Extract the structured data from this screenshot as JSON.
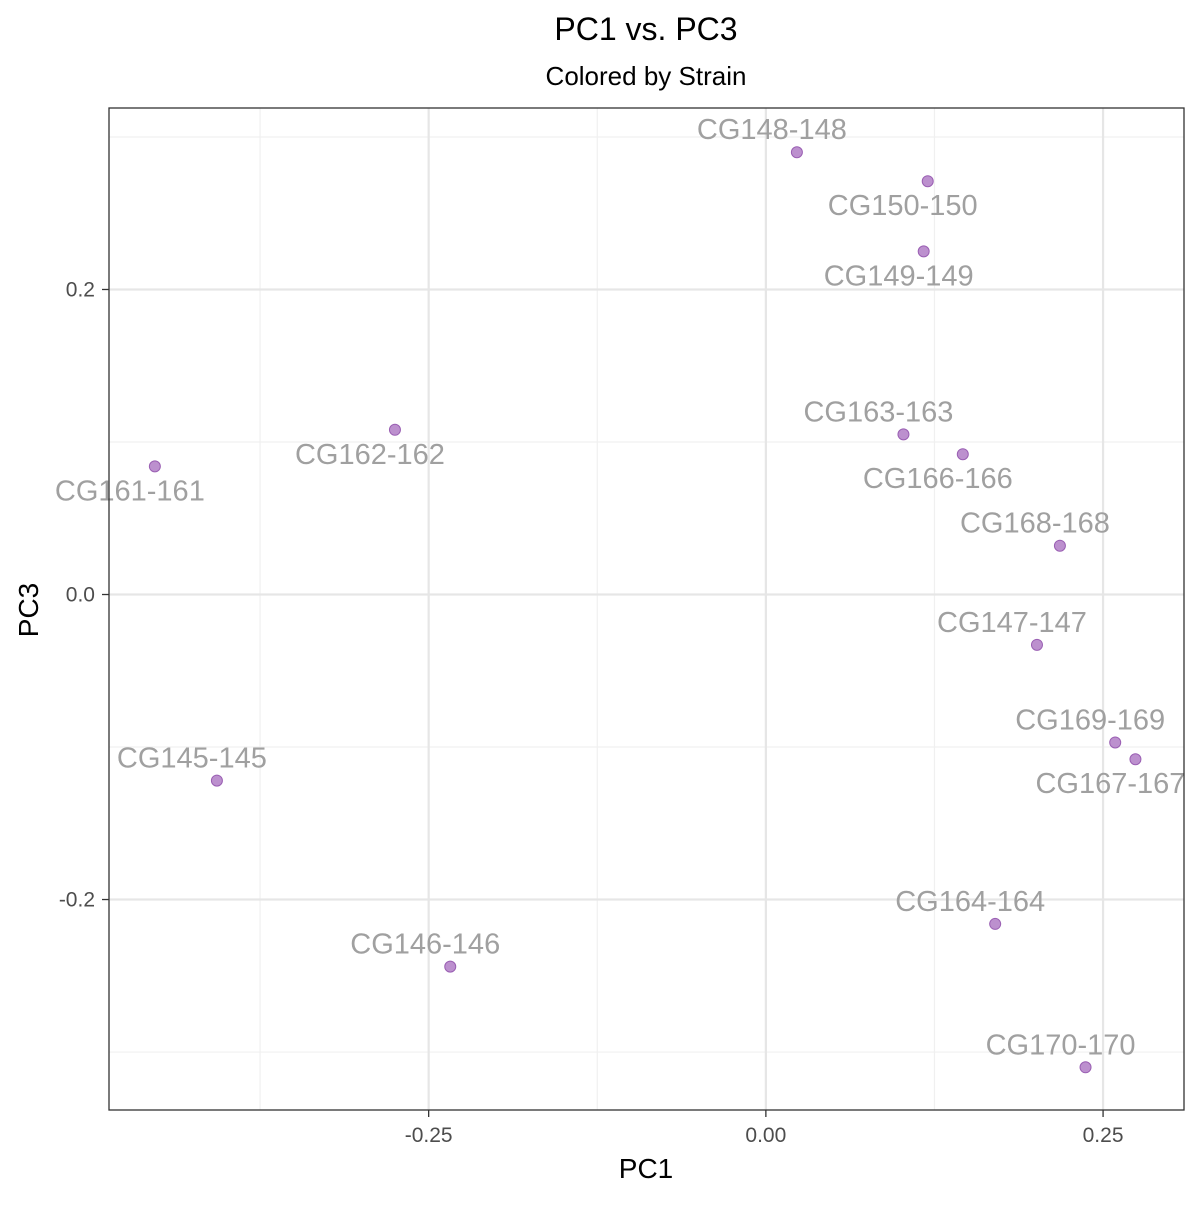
{
  "chart_data": {
    "type": "scatter",
    "title": "PC1 vs. PC3",
    "subtitle": "Colored by Strain",
    "xlabel": "PC1",
    "ylabel": "PC3",
    "xlim": [
      -0.487,
      0.31
    ],
    "ylim": [
      -0.338,
      0.319
    ],
    "x_ticks": [
      -0.25,
      0.0,
      0.25
    ],
    "x_tick_labels": [
      "-0.25",
      "0.00",
      "0.25"
    ],
    "y_ticks": [
      -0.2,
      0.0,
      0.2
    ],
    "y_tick_labels": [
      "-0.2",
      "0.0",
      "0.2"
    ],
    "grid": true,
    "point_color": "#b07cc6",
    "point_stroke": "#9a5fb3",
    "label_color": "#a0a0a0",
    "points": [
      {
        "label": "CG148-148",
        "x": 0.023,
        "y": 0.29,
        "label_pos": "above"
      },
      {
        "label": "CG150-150",
        "x": 0.12,
        "y": 0.271,
        "label_pos": "below"
      },
      {
        "label": "CG149-149",
        "x": 0.117,
        "y": 0.225,
        "label_pos": "below"
      },
      {
        "label": "CG162-162",
        "x": -0.275,
        "y": 0.108,
        "label_pos": "below"
      },
      {
        "label": "CG161-161",
        "x": -0.453,
        "y": 0.084,
        "label_pos": "below"
      },
      {
        "label": "CG163-163",
        "x": 0.102,
        "y": 0.105,
        "label_pos": "above"
      },
      {
        "label": "CG166-166",
        "x": 0.146,
        "y": 0.092,
        "label_pos": "below"
      },
      {
        "label": "CG168-168",
        "x": 0.218,
        "y": 0.032,
        "label_pos": "above"
      },
      {
        "label": "CG147-147",
        "x": 0.201,
        "y": -0.033,
        "label_pos": "above"
      },
      {
        "label": "CG169-169",
        "x": 0.259,
        "y": -0.097,
        "label_pos": "above"
      },
      {
        "label": "CG167-167",
        "x": 0.274,
        "y": -0.108,
        "label_pos": "below"
      },
      {
        "label": "CG145-145",
        "x": -0.407,
        "y": -0.122,
        "label_pos": "above"
      },
      {
        "label": "CG164-164",
        "x": 0.17,
        "y": -0.216,
        "label_pos": "above"
      },
      {
        "label": "CG146-146",
        "x": -0.234,
        "y": -0.244,
        "label_pos": "above"
      },
      {
        "label": "CG170-170",
        "x": 0.237,
        "y": -0.31,
        "label_pos": "above"
      }
    ]
  }
}
